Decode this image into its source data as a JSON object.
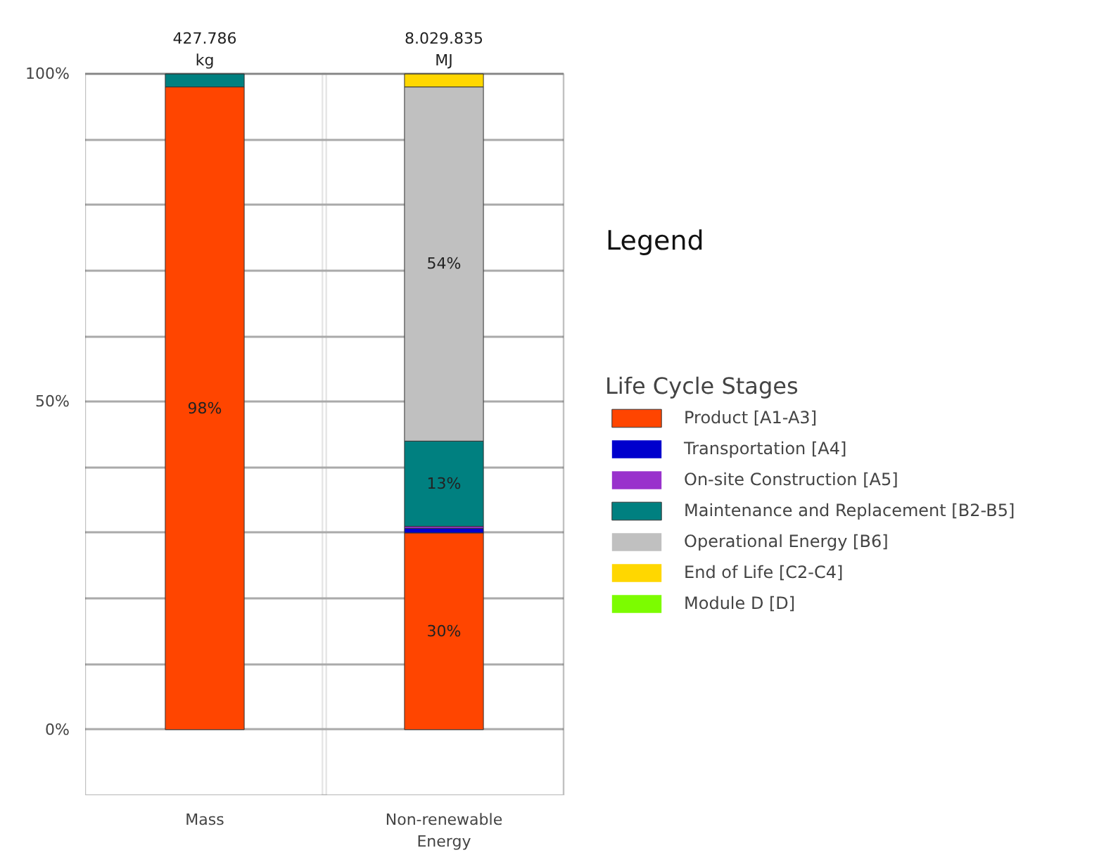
{
  "chart_data": {
    "type": "bar",
    "stacked": true,
    "categories": [
      "Mass",
      "Non-renewable Energy"
    ],
    "series": [
      {
        "name": "Product [A1-A3]",
        "color": "#ff4500",
        "values": [
          98,
          30
        ],
        "value_labels": [
          "98%",
          "30%"
        ]
      },
      {
        "name": "Transportation [A4]",
        "color": "#0000cd",
        "values": [
          0,
          0.7
        ],
        "value_labels": [
          null,
          null
        ]
      },
      {
        "name": "On-site Construction [A5]",
        "color": "#9932cc",
        "values": [
          0,
          0.3
        ],
        "value_labels": [
          null,
          null
        ]
      },
      {
        "name": "Maintenance and Replacement [B2-B5]",
        "color": "#008080",
        "values": [
          2,
          13
        ],
        "value_labels": [
          null,
          "13%"
        ]
      },
      {
        "name": "Operational Energy [B6]",
        "color": "#c0c0c0",
        "values": [
          0,
          54
        ],
        "value_labels": [
          null,
          "54%"
        ]
      },
      {
        "name": "End of Life [C2-C4]",
        "color": "#ffd700",
        "values": [
          0,
          2
        ],
        "value_labels": [
          null,
          null
        ]
      },
      {
        "name": "Module D [D]",
        "color": "#7cfc00",
        "values": [
          0,
          0
        ],
        "value_labels": [
          null,
          null
        ]
      }
    ],
    "ylim": [
      -10,
      100
    ],
    "yticks": [
      {
        "value": -10,
        "label": null
      },
      {
        "value": 0,
        "label": "0%"
      },
      {
        "value": 10,
        "label": null
      },
      {
        "value": 20,
        "label": null
      },
      {
        "value": 30,
        "label": null
      },
      {
        "value": 40,
        "label": null
      },
      {
        "value": 50,
        "label": "50%"
      },
      {
        "value": 60,
        "label": null
      },
      {
        "value": 70,
        "label": null
      },
      {
        "value": 80,
        "label": null
      },
      {
        "value": 90,
        "label": null
      },
      {
        "value": 100,
        "label": "100%"
      }
    ],
    "grid": "y",
    "legend": "right",
    "legend_title": "Life Cycle Stages",
    "annotations": [
      "Legend",
      {
        "text": "427.786\nkg",
        "x": "Mass",
        "y": 100
      },
      {
        "text": "8.029.835\nMJ",
        "x": "Non-renewable Energy",
        "y": 100
      }
    ]
  }
}
